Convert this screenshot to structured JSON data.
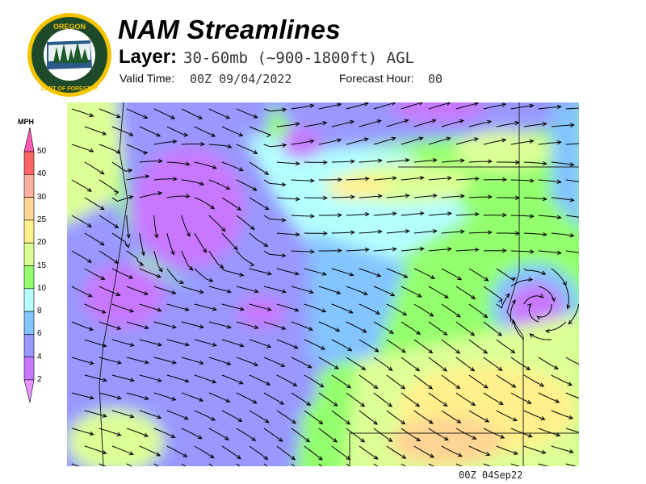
{
  "header": {
    "logo_text": [
      "OREGON",
      "DEPARTMENT OF FORESTRY"
    ],
    "title": "NAM Streamlines",
    "layer_label": "Layer:",
    "layer_value": "30-60mb (~900-1800ft) AGL",
    "valid_time_label": "Valid Time:",
    "valid_time_value": "00Z 09/04/2022",
    "forecast_hour_label": "Forecast Hour:",
    "forecast_hour_value": "00"
  },
  "colorbar": {
    "unit": "MPH",
    "ticks": [
      "50",
      "40",
      "30",
      "25",
      "20",
      "15",
      "10",
      "8",
      "6",
      "4",
      "2"
    ],
    "colors": [
      "#ff6464",
      "#ffb0a0",
      "#ffd494",
      "#fff08c",
      "#dcff96",
      "#94ff6e",
      "#b4ffff",
      "#84c4ff",
      "#9898ff",
      "#c878ff"
    ],
    "over_color": "#ff5ab4",
    "under_color": "#e696ff"
  },
  "footer": {
    "timestamp": "00Z 04Sep22"
  }
}
